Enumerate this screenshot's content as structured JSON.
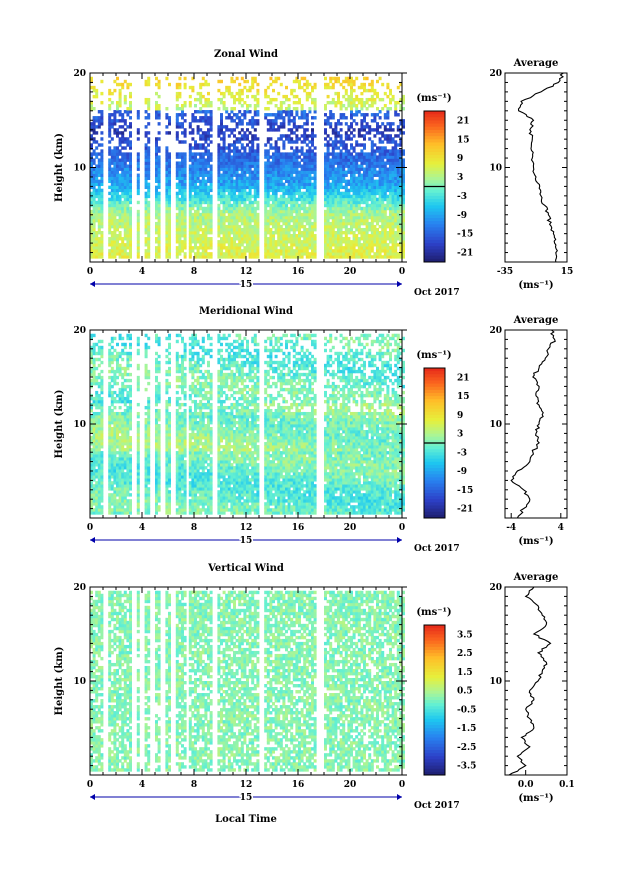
{
  "chart_data": [
    {
      "type": "heatmap",
      "title": "Zonal Wind",
      "ylabel": "Height (km)",
      "ylim": [
        0,
        20
      ],
      "yticks": [
        "20",
        "10"
      ],
      "xlim": [
        0,
        24
      ],
      "xticks": [
        "0",
        "4",
        "8",
        "12",
        "16",
        "20",
        "0"
      ],
      "day_label": "15",
      "date_label": "Oct 2017",
      "colorbar": {
        "unit": "(ms⁻¹)",
        "ticks": [
          "21",
          "15",
          "9",
          "3",
          "-3",
          "-9",
          "-15",
          "-21"
        ],
        "range": [
          -24,
          24
        ],
        "contour_at": 0
      },
      "data_gaps_hours": [
        [
          1.0,
          1.4
        ],
        [
          3.3,
          3.55
        ],
        [
          3.9,
          4.15
        ],
        [
          4.7,
          5.05
        ],
        [
          5.4,
          5.75
        ],
        [
          6.25,
          6.65
        ],
        [
          7.45,
          7.65
        ],
        [
          9.35,
          9.75
        ],
        [
          12.95,
          13.4
        ],
        [
          17.4,
          18.0
        ]
      ],
      "average": {
        "title": "Average",
        "xlabel": "(ms⁻¹)",
        "xticks": [
          "-35",
          "15"
        ],
        "xlim": [
          -35,
          15
        ],
        "yticks": [
          "20",
          "10"
        ],
        "height_km": [
          0,
          1,
          2,
          3,
          4,
          5,
          6,
          7,
          8,
          9,
          10,
          11,
          12,
          13,
          14,
          15,
          16,
          17,
          18,
          19,
          20
        ],
        "values": [
          6,
          6,
          5,
          4,
          1,
          0,
          -3,
          -6,
          -7,
          -10,
          -12,
          -13,
          -14,
          -13,
          -15,
          -12,
          -24,
          -22,
          -6,
          8,
          12
        ]
      }
    },
    {
      "type": "heatmap",
      "title": "Meridional Wind",
      "ylabel": "Height (km)",
      "ylim": [
        0,
        20
      ],
      "yticks": [
        "20",
        "10"
      ],
      "xlim": [
        0,
        24
      ],
      "xticks": [
        "0",
        "4",
        "8",
        "12",
        "16",
        "20",
        "0"
      ],
      "day_label": "15",
      "date_label": "Oct 2017",
      "colorbar": {
        "unit": "(ms⁻¹)",
        "ticks": [
          "21",
          "15",
          "9",
          "3",
          "-3",
          "-9",
          "-15",
          "-21"
        ],
        "range": [
          -24,
          24
        ],
        "contour_at": 0
      },
      "data_gaps_hours": [
        [
          1.0,
          1.4
        ],
        [
          3.3,
          3.55
        ],
        [
          3.9,
          4.15
        ],
        [
          4.7,
          5.05
        ],
        [
          5.4,
          5.75
        ],
        [
          6.25,
          6.65
        ],
        [
          7.45,
          7.65
        ],
        [
          9.35,
          9.75
        ],
        [
          12.95,
          13.4
        ],
        [
          17.4,
          18.0
        ]
      ],
      "average": {
        "title": "Average",
        "xlabel": "(ms⁻¹)",
        "xticks": [
          "-4",
          "4"
        ],
        "xlim": [
          -5,
          5
        ],
        "yticks": [
          "20",
          "10"
        ],
        "height_km": [
          0,
          1,
          2,
          3,
          4,
          5,
          6,
          7,
          8,
          9,
          10,
          11,
          12,
          13,
          14,
          15,
          16,
          17,
          18,
          19,
          20
        ],
        "values": [
          -3,
          -2,
          -1,
          -2,
          -4,
          -3,
          -1,
          -0.5,
          0.5,
          0,
          0.5,
          1,
          0.5,
          0,
          0.5,
          -0.5,
          0.5,
          1.5,
          2,
          3,
          2.5
        ]
      }
    },
    {
      "type": "heatmap",
      "title": "Vertical Wind",
      "ylabel": "Height (km)",
      "xlabel": "Local Time",
      "ylim": [
        0,
        20
      ],
      "yticks": [
        "20",
        "10"
      ],
      "xlim": [
        0,
        24
      ],
      "xticks": [
        "0",
        "4",
        "8",
        "12",
        "16",
        "20",
        "0"
      ],
      "day_label": "15",
      "date_label": "Oct 2017",
      "colorbar": {
        "unit": "(ms⁻¹)",
        "ticks": [
          "3.5",
          "2.5",
          "1.5",
          "0.5",
          "-0.5",
          "-1.5",
          "-2.5",
          "-3.5"
        ],
        "range": [
          -4,
          4
        ]
      },
      "data_gaps_hours": [
        [
          1.0,
          1.4
        ],
        [
          3.3,
          3.55
        ],
        [
          3.9,
          4.15
        ],
        [
          4.7,
          5.05
        ],
        [
          5.4,
          5.75
        ],
        [
          6.25,
          6.65
        ],
        [
          7.45,
          7.65
        ],
        [
          9.35,
          9.75
        ],
        [
          12.95,
          13.4
        ],
        [
          17.4,
          18.0
        ]
      ],
      "average": {
        "title": "Average",
        "xlabel": "(ms⁻¹)",
        "xticks": [
          "0.0",
          "0.1"
        ],
        "xlim": [
          -0.05,
          0.1
        ],
        "yticks": [
          "20",
          "10"
        ],
        "height_km": [
          0,
          1,
          2,
          3,
          4,
          5,
          6,
          7,
          8,
          9,
          10,
          11,
          12,
          13,
          14,
          15,
          16,
          17,
          18,
          19,
          20
        ],
        "values": [
          -0.04,
          0.0,
          -0.02,
          0.01,
          -0.01,
          0.02,
          0.01,
          0.0,
          0.02,
          0.01,
          0.03,
          0.04,
          0.05,
          0.03,
          0.06,
          0.02,
          0.05,
          0.04,
          0.03,
          0.0,
          0.02
        ]
      }
    }
  ]
}
